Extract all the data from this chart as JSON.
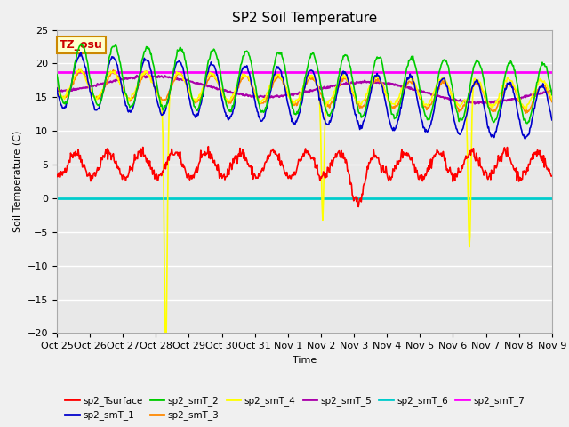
{
  "title": "SP2 Soil Temperature",
  "xlabel": "Time",
  "ylabel": "Soil Temperature (C)",
  "ylim": [
    -20,
    25
  ],
  "yticks": [
    -20,
    -15,
    -10,
    -5,
    0,
    5,
    10,
    15,
    20,
    25
  ],
  "tz_label": "TZ_osu",
  "xtick_labels": [
    "Oct 25",
    "Oct 26",
    "Oct 27",
    "Oct 28",
    "Oct 29",
    "Oct 30",
    "Oct 31",
    "Nov 1",
    "Nov 2",
    "Nov 3",
    "Nov 4",
    "Nov 5",
    "Nov 6",
    "Nov 7",
    "Nov 8",
    "Nov 9"
  ],
  "series_colors": {
    "sp2_Tsurface": "#ff0000",
    "sp2_smT_1": "#0000cc",
    "sp2_smT_2": "#00cc00",
    "sp2_smT_3": "#ff8800",
    "sp2_smT_4": "#ffff00",
    "sp2_smT_5": "#aa00aa",
    "sp2_smT_6": "#00cccc",
    "sp2_smT_7": "#ff00ff"
  },
  "background_color": "#f0f0f0",
  "plot_bg_color": "#e8e8e8",
  "grid_color": "#ffffff",
  "figsize": [
    6.4,
    4.8
  ],
  "dpi": 100
}
